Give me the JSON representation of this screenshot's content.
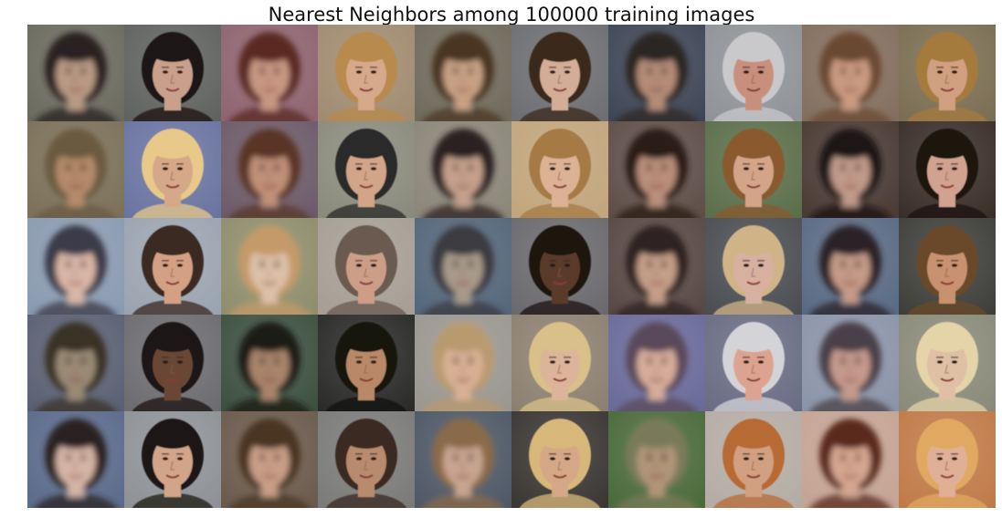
{
  "figure": {
    "title": "Nearest Neighbors among 100000 training images"
  },
  "grid": {
    "rows": 5,
    "cols": 10,
    "tiles": [
      {
        "bg": "#6b6a5e",
        "skin": "#b89a84",
        "hair": "#2a2320",
        "blur": true
      },
      {
        "bg": "#5f625e",
        "skin": "#c9a08c",
        "hair": "#1c1612",
        "blur": false
      },
      {
        "bg": "#8e6470",
        "skin": "#c79782",
        "hair": "#5a2a22",
        "blur": true
      },
      {
        "bg": "#a08b70",
        "skin": "#d6a98a",
        "hair": "#b88a4e",
        "blur": false
      },
      {
        "bg": "#6f6a5c",
        "skin": "#c7a084",
        "hair": "#4a3424",
        "blur": true
      },
      {
        "bg": "#6c6e72",
        "skin": "#d3ad96",
        "hair": "#3b2a1e",
        "blur": false
      },
      {
        "bg": "#3e4656",
        "skin": "#b48c78",
        "hair": "#2b2622",
        "blur": true
      },
      {
        "bg": "#8f9297",
        "skin": "#c88f7c",
        "hair": "#c9c9cc",
        "blur": false
      },
      {
        "bg": "#836e5e",
        "skin": "#c99a80",
        "hair": "#6b4a30",
        "blur": true
      },
      {
        "bg": "#7a6d52",
        "skin": "#d0a080",
        "hair": "#a47a3e",
        "blur": false
      },
      {
        "bg": "#7b7058",
        "skin": "#b48a6a",
        "hair": "#6a5a40",
        "blur": true
      },
      {
        "bg": "#6a74a0",
        "skin": "#d6a88a",
        "hair": "#e8c98a",
        "blur": false
      },
      {
        "bg": "#6c5a68",
        "skin": "#c09078",
        "hair": "#5a3426",
        "blur": true
      },
      {
        "bg": "#8a8a7c",
        "skin": "#d2a488",
        "hair": "#2a2a2a",
        "blur": false
      },
      {
        "bg": "#8a8678",
        "skin": "#c4a08c",
        "hair": "#2b2420",
        "blur": true
      },
      {
        "bg": "#c1a57c",
        "skin": "#dcb294",
        "hair": "#a67a44",
        "blur": false
      },
      {
        "bg": "#5e4e48",
        "skin": "#b98e7a",
        "hair": "#2a1c16",
        "blur": true
      },
      {
        "bg": "#5b6e4a",
        "skin": "#d4a488",
        "hair": "#8a5a2e",
        "blur": false
      },
      {
        "bg": "#4a3a34",
        "skin": "#c09a88",
        "hair": "#1e1614",
        "blur": true
      },
      {
        "bg": "#3a2e28",
        "skin": "#d2a290",
        "hair": "#1e1410",
        "blur": false
      },
      {
        "bg": "#8a9ab0",
        "skin": "#d8b6a6",
        "hair": "#3a3a48",
        "blur": true
      },
      {
        "bg": "#9aa4b0",
        "skin": "#d4a084",
        "hair": "#3a2a20",
        "blur": false
      },
      {
        "bg": "#8e8e6c",
        "skin": "#dcc0a8",
        "hair": "#c49a68",
        "blur": true
      },
      {
        "bg": "#a69e94",
        "skin": "#cc9e88",
        "hair": "#6a5a50",
        "blur": false
      },
      {
        "bg": "#54667a",
        "skin": "#a89a8a",
        "hair": "#3a3a40",
        "blur": true
      },
      {
        "bg": "#6a6a6e",
        "skin": "#5a3a2a",
        "hair": "#1a1210",
        "blur": false
      },
      {
        "bg": "#584844",
        "skin": "#c49e88",
        "hair": "#2e2420",
        "blur": true
      },
      {
        "bg": "#4a4e52",
        "skin": "#d8b0a0",
        "hair": "#d0b488",
        "blur": false
      },
      {
        "bg": "#5a6a84",
        "skin": "#c49a88",
        "hair": "#2a2226",
        "blur": true
      },
      {
        "bg": "#3e3e3a",
        "skin": "#c89270",
        "hair": "#6a4a2a",
        "blur": false
      },
      {
        "bg": "#5a6072",
        "skin": "#9a8a74",
        "hair": "#3a3228",
        "blur": true
      },
      {
        "bg": "#6c6c70",
        "skin": "#6a4634",
        "hair": "#1a1412",
        "blur": false
      },
      {
        "bg": "#3c5040",
        "skin": "#a8846a",
        "hair": "#1e1a16",
        "blur": true
      },
      {
        "bg": "#2a2a28",
        "skin": "#b88868",
        "hair": "#161210",
        "blur": false
      },
      {
        "bg": "#9a9690",
        "skin": "#d8b094",
        "hair": "#b89a6e",
        "blur": true
      },
      {
        "bg": "#8c8070",
        "skin": "#dcb49a",
        "hair": "#d8c088",
        "blur": false
      },
      {
        "bg": "#6a6a9a",
        "skin": "#d6ac9a",
        "hair": "#5a4a5a",
        "blur": true
      },
      {
        "bg": "#6a6c84",
        "skin": "#dca490",
        "hair": "#d4d4d8",
        "blur": false
      },
      {
        "bg": "#8a94a8",
        "skin": "#c49a8c",
        "hair": "#4a4048",
        "blur": true
      },
      {
        "bg": "#8a8a7a",
        "skin": "#e0c0a4",
        "hair": "#e4d4a8",
        "blur": false
      },
      {
        "bg": "#5a6a8a",
        "skin": "#d4b4a4",
        "hair": "#2a2220",
        "blur": true
      },
      {
        "bg": "#8e9296",
        "skin": "#d2a488",
        "hair": "#1e1816",
        "blur": false
      },
      {
        "bg": "#6a5a4c",
        "skin": "#c89e86",
        "hair": "#4a3424",
        "blur": true
      },
      {
        "bg": "#7a7a78",
        "skin": "#b88a6e",
        "hair": "#3a2a20",
        "blur": false
      },
      {
        "bg": "#4e5866",
        "skin": "#c8a490",
        "hair": "#8a6a4a",
        "blur": true
      },
      {
        "bg": "#3a3634",
        "skin": "#d4a886",
        "hair": "#d8b87a",
        "blur": false
      },
      {
        "bg": "#4a6a3a",
        "skin": "#b09478",
        "hair": "#7a7a5a",
        "blur": true
      },
      {
        "bg": "#b4aca4",
        "skin": "#d0a080",
        "hair": "#b86a34",
        "blur": false
      },
      {
        "bg": "#c4a494",
        "skin": "#d4a690",
        "hair": "#5a2a1a",
        "blur": true
      },
      {
        "bg": "#c07a48",
        "skin": "#e0b096",
        "hair": "#e0a860",
        "blur": false
      }
    ]
  }
}
